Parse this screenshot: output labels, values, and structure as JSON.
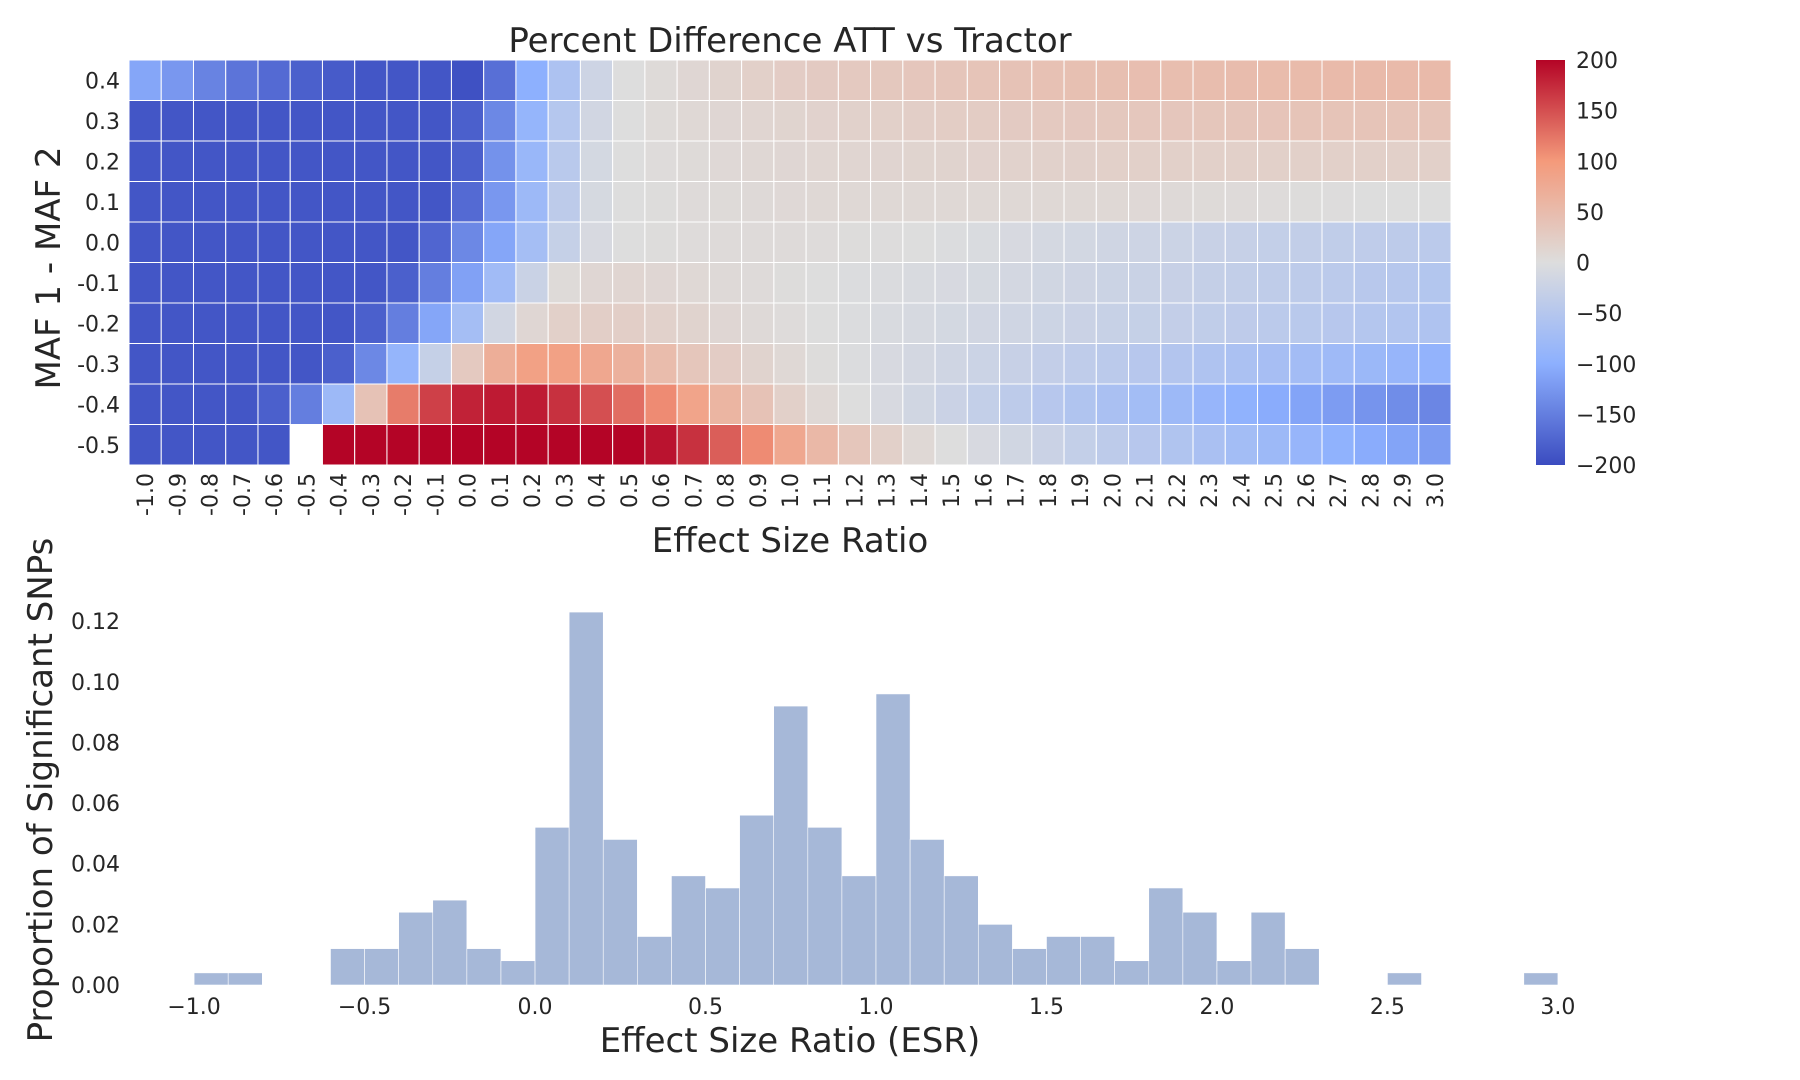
{
  "chart_data": [
    {
      "type": "heatmap",
      "title": "Percent Difference ATT vs Tractor",
      "xlabel": "Effect Size Ratio",
      "ylabel": "MAF 1 - MAF 2",
      "x_categories": [
        "-1.0",
        "-0.9",
        "-0.8",
        "-0.7",
        "-0.6",
        "-0.5",
        "-0.4",
        "-0.3",
        "-0.2",
        "-0.1",
        "0.0",
        "0.1",
        "0.2",
        "0.3",
        "0.4",
        "0.5",
        "0.6",
        "0.7",
        "0.8",
        "0.9",
        "1.0",
        "1.1",
        "1.2",
        "1.3",
        "1.4",
        "1.5",
        "1.6",
        "1.7",
        "1.8",
        "1.9",
        "2.0",
        "2.1",
        "2.2",
        "2.3",
        "2.4",
        "2.5",
        "2.6",
        "2.7",
        "2.8",
        "2.9",
        "3.0"
      ],
      "y_categories": [
        "0.4",
        "0.3",
        "0.2",
        "0.1",
        "0.0",
        "-0.1",
        "-0.2",
        "-0.3",
        "-0.4",
        "-0.5"
      ],
      "colormap": "coolwarm",
      "color_range": [
        -200,
        200
      ],
      "colorbar_ticks": [
        "200",
        "150",
        "100",
        "50",
        "0",
        "−50",
        "−100",
        "−150",
        "−200"
      ],
      "values": [
        [
          -110,
          -125,
          -145,
          -160,
          -170,
          -180,
          -185,
          -190,
          -190,
          -190,
          -195,
          -165,
          -100,
          -60,
          -20,
          0,
          5,
          10,
          15,
          20,
          25,
          28,
          30,
          32,
          34,
          36,
          38,
          40,
          42,
          44,
          45,
          46,
          47,
          48,
          49,
          50,
          51,
          52,
          52,
          52,
          52
        ],
        [
          -190,
          -190,
          -190,
          -190,
          -190,
          -190,
          -190,
          -190,
          -190,
          -190,
          -180,
          -140,
          -90,
          -50,
          -15,
          0,
          5,
          8,
          10,
          12,
          14,
          16,
          18,
          20,
          22,
          24,
          26,
          28,
          30,
          31,
          32,
          33,
          34,
          35,
          36,
          37,
          38,
          38,
          38,
          38,
          38
        ],
        [
          -190,
          -190,
          -190,
          -190,
          -190,
          -190,
          -190,
          -190,
          -190,
          -190,
          -180,
          -130,
          -85,
          -45,
          -12,
          0,
          3,
          5,
          7,
          9,
          10,
          11,
          12,
          13,
          14,
          15,
          16,
          17,
          18,
          19,
          20,
          20,
          20,
          20,
          20,
          20,
          20,
          20,
          20,
          20,
          20
        ],
        [
          -190,
          -190,
          -190,
          -190,
          -190,
          -190,
          -190,
          -190,
          -190,
          -190,
          -170,
          -125,
          -80,
          -40,
          -10,
          0,
          2,
          4,
          5,
          6,
          7,
          8,
          8,
          8,
          8,
          8,
          8,
          8,
          8,
          8,
          8,
          7,
          6,
          5,
          4,
          3,
          2,
          1,
          0,
          0,
          0
        ],
        [
          -190,
          -190,
          -190,
          -190,
          -190,
          -190,
          -190,
          -190,
          -190,
          -175,
          -140,
          -110,
          -70,
          -30,
          -8,
          0,
          2,
          3,
          4,
          4,
          4,
          3,
          2,
          1,
          0,
          -2,
          -5,
          -8,
          -11,
          -14,
          -17,
          -20,
          -23,
          -26,
          -29,
          -32,
          -34,
          -36,
          -38,
          -40,
          -42
        ],
        [
          -190,
          -190,
          -190,
          -190,
          -190,
          -190,
          -190,
          -190,
          -180,
          -150,
          -115,
          -75,
          -25,
          5,
          10,
          12,
          10,
          8,
          6,
          4,
          2,
          0,
          -2,
          -4,
          -6,
          -8,
          -10,
          -13,
          -16,
          -19,
          -22,
          -25,
          -28,
          -31,
          -34,
          -37,
          -40,
          -43,
          -46,
          -49,
          -52
        ],
        [
          -190,
          -190,
          -190,
          -190,
          -190,
          -190,
          -190,
          -180,
          -150,
          -110,
          -70,
          -15,
          10,
          20,
          22,
          22,
          18,
          15,
          10,
          6,
          3,
          0,
          -3,
          -6,
          -9,
          -12,
          -15,
          -18,
          -21,
          -24,
          -27,
          -30,
          -33,
          -36,
          -39,
          -42,
          -45,
          -48,
          -51,
          -54,
          -57
        ],
        [
          -190,
          -190,
          -190,
          -190,
          -190,
          -190,
          -180,
          -140,
          -90,
          -30,
          30,
          70,
          90,
          90,
          80,
          65,
          50,
          35,
          25,
          15,
          8,
          2,
          -3,
          -8,
          -13,
          -18,
          -23,
          -28,
          -33,
          -38,
          -43,
          -48,
          -53,
          -58,
          -63,
          -68,
          -73,
          -78,
          -83,
          -88,
          -93
        ],
        [
          -190,
          -190,
          -190,
          -190,
          -180,
          -150,
          -80,
          40,
          120,
          160,
          180,
          185,
          185,
          170,
          150,
          130,
          110,
          85,
          60,
          40,
          20,
          8,
          0,
          -8,
          -16,
          -24,
          -32,
          -40,
          -48,
          -56,
          -64,
          -72,
          -80,
          -88,
          -96,
          -104,
          -112,
          -120,
          -128,
          -135,
          -142
        ],
        [
          -190,
          -190,
          -190,
          -190,
          -190,
          null,
          200,
          200,
          200,
          200,
          200,
          200,
          200,
          200,
          200,
          200,
          190,
          170,
          140,
          110,
          80,
          55,
          35,
          20,
          8,
          0,
          -8,
          -16,
          -24,
          -32,
          -40,
          -48,
          -56,
          -64,
          -72,
          -80,
          -88,
          -96,
          -104,
          -112,
          -120
        ]
      ]
    },
    {
      "type": "histogram",
      "xlabel": "Effect Size Ratio (ESR)",
      "ylabel": "Proportion of Significant SNPs",
      "xlim": [
        -1.1,
        3.1
      ],
      "ylim": [
        0,
        0.125
      ],
      "x_ticks": [
        "−1.0",
        "−0.5",
        "0.0",
        "0.5",
        "1.0",
        "1.5",
        "2.0",
        "2.5",
        "3.0"
      ],
      "y_ticks": [
        "0.00",
        "0.02",
        "0.04",
        "0.06",
        "0.08",
        "0.10",
        "0.12"
      ],
      "color": "#a6b8d8",
      "bins": [
        {
          "start": -1.0,
          "end": -0.9,
          "value": 0.004
        },
        {
          "start": -0.9,
          "end": -0.8,
          "value": 0.004
        },
        {
          "start": -0.6,
          "end": -0.5,
          "value": 0.012
        },
        {
          "start": -0.5,
          "end": -0.4,
          "value": 0.012
        },
        {
          "start": -0.4,
          "end": -0.3,
          "value": 0.024
        },
        {
          "start": -0.3,
          "end": -0.2,
          "value": 0.028
        },
        {
          "start": -0.2,
          "end": -0.1,
          "value": 0.012
        },
        {
          "start": -0.1,
          "end": 0.0,
          "value": 0.008
        },
        {
          "start": 0.0,
          "end": 0.1,
          "value": 0.052
        },
        {
          "start": 0.1,
          "end": 0.2,
          "value": 0.123
        },
        {
          "start": 0.2,
          "end": 0.3,
          "value": 0.048
        },
        {
          "start": 0.3,
          "end": 0.4,
          "value": 0.016
        },
        {
          "start": 0.4,
          "end": 0.5,
          "value": 0.036
        },
        {
          "start": 0.5,
          "end": 0.6,
          "value": 0.032
        },
        {
          "start": 0.6,
          "end": 0.7,
          "value": 0.056
        },
        {
          "start": 0.7,
          "end": 0.8,
          "value": 0.092
        },
        {
          "start": 0.8,
          "end": 0.9,
          "value": 0.052
        },
        {
          "start": 0.9,
          "end": 1.0,
          "value": 0.036
        },
        {
          "start": 1.0,
          "end": 1.1,
          "value": 0.096
        },
        {
          "start": 1.1,
          "end": 1.2,
          "value": 0.048
        },
        {
          "start": 1.2,
          "end": 1.3,
          "value": 0.036
        },
        {
          "start": 1.3,
          "end": 1.4,
          "value": 0.02
        },
        {
          "start": 1.4,
          "end": 1.5,
          "value": 0.012
        },
        {
          "start": 1.5,
          "end": 1.6,
          "value": 0.016
        },
        {
          "start": 1.6,
          "end": 1.7,
          "value": 0.016
        },
        {
          "start": 1.7,
          "end": 1.8,
          "value": 0.008
        },
        {
          "start": 1.8,
          "end": 1.9,
          "value": 0.032
        },
        {
          "start": 1.9,
          "end": 2.0,
          "value": 0.024
        },
        {
          "start": 2.0,
          "end": 2.1,
          "value": 0.008
        },
        {
          "start": 2.1,
          "end": 2.2,
          "value": 0.024
        },
        {
          "start": 2.2,
          "end": 2.3,
          "value": 0.012
        },
        {
          "start": 2.5,
          "end": 2.6,
          "value": 0.004
        },
        {
          "start": 2.9,
          "end": 3.0,
          "value": 0.004
        }
      ]
    }
  ]
}
